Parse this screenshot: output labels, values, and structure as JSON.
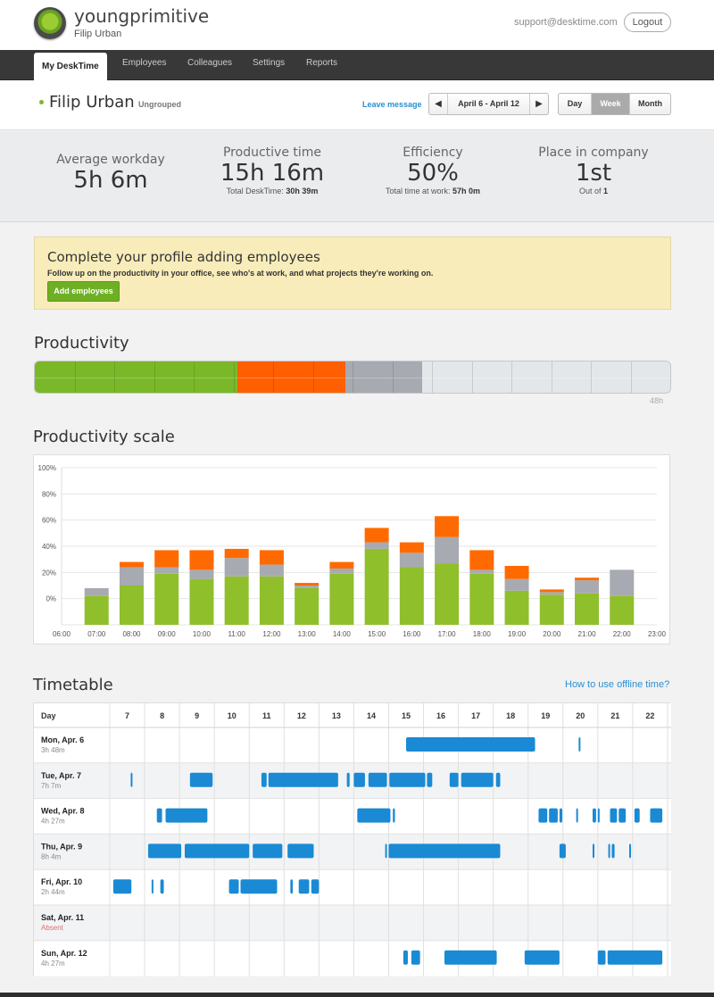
{
  "header": {
    "brand": "youngprimitive",
    "user": "Filip Urban",
    "support_email": "support@desktime.com",
    "logout_label": "Logout"
  },
  "nav": {
    "tabs": [
      {
        "label": "My DeskTime",
        "active": true
      },
      {
        "label": "Employees"
      },
      {
        "label": "Colleagues"
      },
      {
        "label": "Settings"
      },
      {
        "label": "Reports"
      }
    ]
  },
  "userbar": {
    "name": "Filip Urban",
    "group": "Ungrouped",
    "leave_message": "Leave message",
    "date_range": "April 6 - April 12",
    "views": [
      "Day",
      "Week",
      "Month"
    ],
    "active_view": "Week"
  },
  "stats": {
    "average_workday": {
      "label": "Average workday",
      "value": "5h 6m"
    },
    "productive_time": {
      "label": "Productive time",
      "value": "15h 16m",
      "sub_label": "Total DeskTime:",
      "sub_value": "30h 39m"
    },
    "efficiency": {
      "label": "Efficiency",
      "value": "50%",
      "sub_label": "Total time at work:",
      "sub_value": "57h 0m"
    },
    "place": {
      "label": "Place in company",
      "value": "1st",
      "sub_label": "Out of",
      "sub_value": "1"
    }
  },
  "banner": {
    "title": "Complete your profile adding employees",
    "text": "Follow up on the productivity in your office, see who's at work, and what projects they're working on.",
    "button": "Add employees"
  },
  "productivity": {
    "title": "Productivity",
    "max_label": "48h",
    "max_hours": 48,
    "productive_hours": 15.27,
    "unproductive_hours": 8.2,
    "neutral_hours": 5.8,
    "colors": {
      "productive": "#7ab829",
      "unproductive": "#ff5f00",
      "neutral": "#a7aab0",
      "empty": "#e4e7ea"
    }
  },
  "chart_data": {
    "type": "bar",
    "title": "Productivity scale",
    "stacked": true,
    "y_tick_labels": [
      "0%",
      "20%",
      "40%",
      "60%",
      "80%",
      "100%"
    ],
    "x_tick_labels": [
      "06:00",
      "07:00",
      "08:00",
      "09:00",
      "10:00",
      "11:00",
      "12:00",
      "13:00",
      "14:00",
      "15:00",
      "16:00",
      "17:00",
      "18:00",
      "19:00",
      "20:00",
      "21:00",
      "22:00",
      "23:00"
    ],
    "categories": [
      "07:00",
      "08:00",
      "09:00",
      "10:00",
      "11:00",
      "12:00",
      "13:00",
      "14:00",
      "15:00",
      "16:00",
      "17:00",
      "18:00",
      "19:00",
      "20:00",
      "21:00",
      "22:00"
    ],
    "series": [
      {
        "color": "#8fbf2b",
        "values": [
          22,
          30,
          39,
          35,
          37,
          37,
          28,
          39,
          58,
          44,
          47,
          39,
          26,
          23,
          24,
          22
        ]
      },
      {
        "color": "#a7aab0",
        "values": [
          6,
          14,
          5,
          7,
          14,
          9,
          2,
          4,
          5,
          11,
          20,
          3,
          9,
          2,
          10,
          20
        ]
      },
      {
        "color": "#ff6a00",
        "values": [
          0,
          4,
          13,
          15,
          7,
          11,
          2,
          5,
          11,
          8,
          16,
          15,
          10,
          2,
          2,
          0
        ]
      }
    ],
    "ylim": [
      -20,
      100
    ],
    "grid": true,
    "legend": "none"
  },
  "timetable": {
    "title": "Timetable",
    "help_link": "How to use offline time?",
    "day_header": "Day",
    "hours": [
      "7",
      "8",
      "9",
      "10",
      "11",
      "12",
      "13",
      "14",
      "15",
      "16",
      "17",
      "18",
      "19",
      "20",
      "21",
      "22"
    ],
    "bar_color": "#1a8ad4",
    "rows": [
      {
        "day": "Mon, Apr. 6",
        "total": "3h 48m",
        "absent": false,
        "blocks": [
          [
            15.0,
            18.7
          ],
          [
            19.95,
            19.98
          ]
        ]
      },
      {
        "day": "Tue, Apr. 7",
        "total": "7h 7m",
        "absent": false,
        "blocks": [
          [
            7.1,
            7.12
          ],
          [
            8.8,
            9.45
          ],
          [
            10.85,
            11.0
          ],
          [
            11.05,
            13.05
          ],
          [
            13.3,
            13.38
          ],
          [
            13.5,
            13.82
          ],
          [
            13.92,
            14.45
          ],
          [
            14.52,
            15.55
          ],
          [
            15.6,
            15.75
          ],
          [
            16.25,
            16.5
          ],
          [
            16.58,
            17.5
          ],
          [
            17.58,
            17.7
          ]
        ]
      },
      {
        "day": "Wed, Apr. 8",
        "total": "4h 27m",
        "absent": false,
        "blocks": [
          [
            7.85,
            8.0
          ],
          [
            8.1,
            9.3
          ],
          [
            13.6,
            14.55
          ],
          [
            14.62,
            14.68
          ],
          [
            18.8,
            19.05
          ],
          [
            19.1,
            19.35
          ],
          [
            19.4,
            19.48
          ],
          [
            19.88,
            19.93
          ],
          [
            20.35,
            20.45
          ],
          [
            20.5,
            20.55
          ],
          [
            20.85,
            21.05
          ],
          [
            21.1,
            21.3
          ],
          [
            21.55,
            21.7
          ],
          [
            22.0,
            22.35
          ]
        ]
      },
      {
        "day": "Thu, Apr. 9",
        "total": "8h 4m",
        "absent": false,
        "blocks": [
          [
            7.6,
            8.55
          ],
          [
            8.65,
            10.5
          ],
          [
            10.6,
            11.45
          ],
          [
            11.6,
            12.35
          ],
          [
            14.4,
            14.45
          ],
          [
            14.5,
            17.7
          ],
          [
            19.4,
            19.58
          ],
          [
            20.35,
            20.4
          ],
          [
            20.8,
            20.85
          ],
          [
            20.9,
            20.98
          ],
          [
            21.4,
            21.43
          ]
        ]
      },
      {
        "day": "Fri, Apr. 10",
        "total": "2h 44m",
        "absent": false,
        "blocks": [
          [
            6.6,
            7.12
          ],
          [
            7.7,
            7.75
          ],
          [
            7.95,
            8.05
          ],
          [
            9.92,
            10.2
          ],
          [
            10.25,
            11.3
          ],
          [
            11.68,
            11.75
          ],
          [
            11.92,
            12.22
          ],
          [
            12.28,
            12.5
          ]
        ]
      },
      {
        "day": "Sat, Apr. 11",
        "total": "Absent",
        "absent": true,
        "blocks": []
      },
      {
        "day": "Sun, Apr. 12",
        "total": "4h 27m",
        "absent": false,
        "blocks": [
          [
            14.92,
            15.05
          ],
          [
            15.15,
            15.4
          ],
          [
            16.1,
            17.6
          ],
          [
            18.4,
            19.4
          ],
          [
            20.5,
            20.72
          ],
          [
            20.78,
            22.35
          ]
        ]
      }
    ]
  }
}
